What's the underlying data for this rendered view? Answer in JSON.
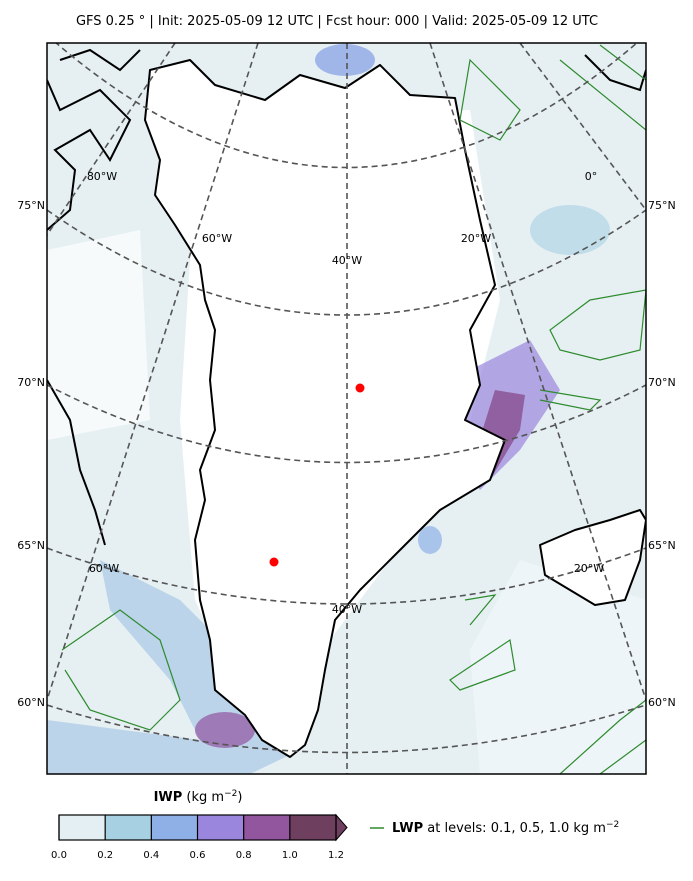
{
  "header": {
    "title": "GFS 0.25 °  |  Init: 2025-05-09 12 UTC  |  Fcst hour: 000  |  Valid: 2025-05-09 12 UTC"
  },
  "map": {
    "lat_labels": [
      "75°N",
      "70°N",
      "65°N",
      "60°N"
    ],
    "lon_labels": [
      "80°W",
      "0°",
      "60°W",
      "40°W",
      "20°W",
      "60°W",
      "40°W",
      "20°W"
    ]
  },
  "colorbar": {
    "name": "IWP",
    "unit": "(kg m",
    "unit_exponent": "−2",
    "unit_end": ")",
    "clim": [
      0,
      1.2
    ],
    "colors": [
      "#e4eff3",
      "#a8d0e3",
      "#8fb0e6",
      "#9a86dc",
      "#92569f",
      "#6e3f5e"
    ],
    "ticks": [
      {
        "value": 0,
        "label": "0.0"
      },
      0.2,
      0.4,
      0.6,
      0.8,
      {
        "value": 1,
        "label": "1.0"
      },
      1.2
    ]
  },
  "legend": {
    "name": "LWP",
    "text": "at levels: 0.1, 0.5, 1.0  kg m",
    "exponent": "−2",
    "color": "#2e8b2e"
  }
}
